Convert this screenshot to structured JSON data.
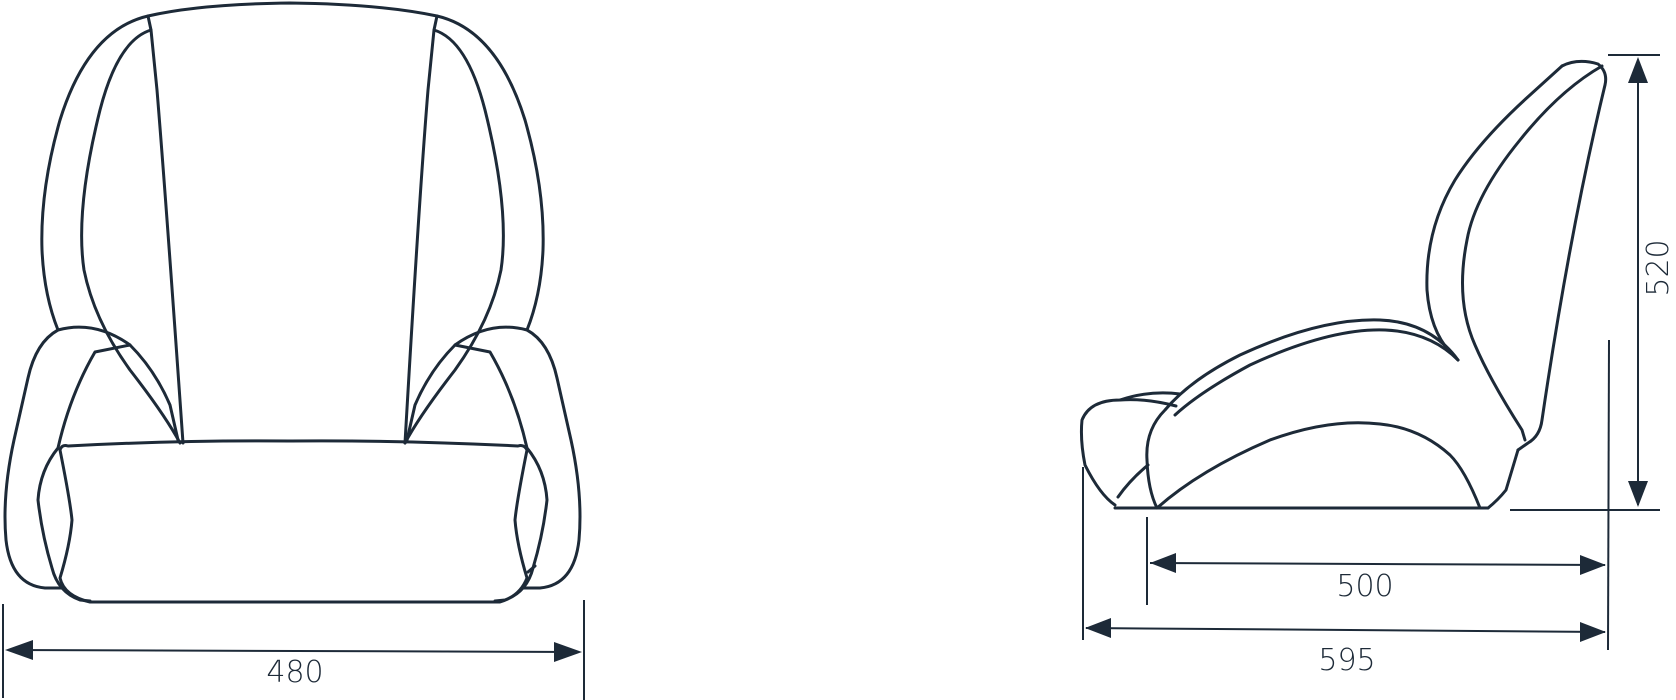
{
  "dimensions": {
    "front_width": "480",
    "side_seat_depth": "500",
    "side_overall_depth": "595",
    "side_back_height": "520"
  }
}
